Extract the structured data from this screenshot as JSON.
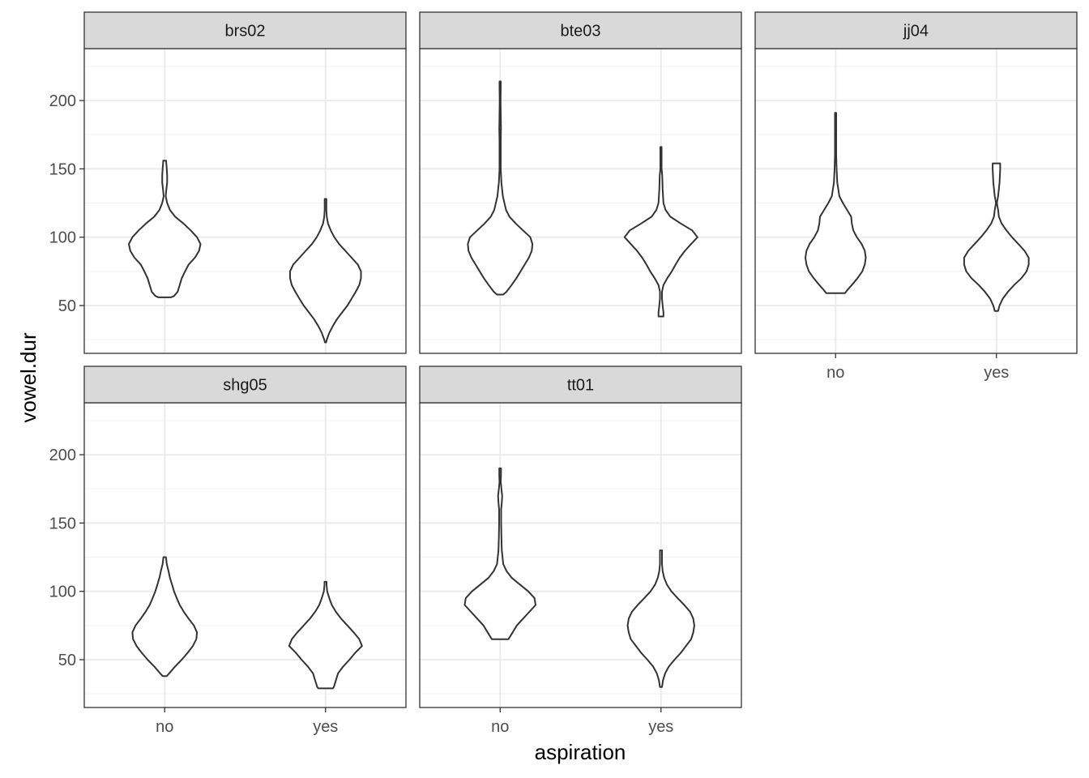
{
  "chart_data": {
    "type": "violin",
    "xlabel": "aspiration",
    "ylabel": "vowel.dur",
    "categories": [
      "no",
      "yes"
    ],
    "ylim": [
      15,
      238
    ],
    "yticks": [
      50,
      100,
      150,
      200
    ],
    "grid": true,
    "facets": [
      {
        "name": "brs02",
        "violins": [
          {
            "category": "no",
            "min": 56,
            "max": 156,
            "profile": [
              [
                56,
                0.3
              ],
              [
                57,
                0.45
              ],
              [
                60,
                0.62
              ],
              [
                65,
                0.72
              ],
              [
                70,
                0.82
              ],
              [
                75,
                0.98
              ],
              [
                80,
                1.15
              ],
              [
                85,
                1.45
              ],
              [
                90,
                1.65
              ],
              [
                95,
                1.72
              ],
              [
                100,
                1.55
              ],
              [
                105,
                1.25
              ],
              [
                110,
                0.9
              ],
              [
                115,
                0.5
              ],
              [
                120,
                0.25
              ],
              [
                125,
                0.12
              ],
              [
                130,
                0.05
              ],
              [
                135,
                0.08
              ],
              [
                140,
                0.12
              ],
              [
                145,
                0.12
              ],
              [
                150,
                0.1
              ],
              [
                155,
                0.07
              ],
              [
                156,
                0.07
              ]
            ]
          },
          {
            "category": "yes",
            "min": 23,
            "max": 128,
            "profile": [
              [
                23,
                0.03
              ],
              [
                25,
                0.06
              ],
              [
                30,
                0.18
              ],
              [
                35,
                0.35
              ],
              [
                40,
                0.55
              ],
              [
                45,
                0.8
              ],
              [
                50,
                1.05
              ],
              [
                55,
                1.25
              ],
              [
                60,
                1.45
              ],
              [
                65,
                1.62
              ],
              [
                70,
                1.7
              ],
              [
                75,
                1.7
              ],
              [
                80,
                1.55
              ],
              [
                85,
                1.25
              ],
              [
                90,
                0.95
              ],
              [
                95,
                0.65
              ],
              [
                100,
                0.42
              ],
              [
                105,
                0.25
              ],
              [
                110,
                0.12
              ],
              [
                115,
                0.06
              ],
              [
                120,
                0.04
              ],
              [
                125,
                0.04
              ],
              [
                128,
                0.04
              ]
            ]
          }
        ]
      },
      {
        "name": "bte03",
        "violins": [
          {
            "category": "no",
            "min": 58,
            "max": 214,
            "profile": [
              [
                58,
                0.15
              ],
              [
                60,
                0.3
              ],
              [
                65,
                0.55
              ],
              [
                70,
                0.78
              ],
              [
                75,
                0.98
              ],
              [
                80,
                1.18
              ],
              [
                85,
                1.38
              ],
              [
                90,
                1.52
              ],
              [
                95,
                1.55
              ],
              [
                100,
                1.45
              ],
              [
                105,
                1.1
              ],
              [
                110,
                0.75
              ],
              [
                115,
                0.45
              ],
              [
                120,
                0.28
              ],
              [
                130,
                0.13
              ],
              [
                140,
                0.06
              ],
              [
                150,
                0.03
              ],
              [
                160,
                0.03
              ],
              [
                170,
                0.03
              ],
              [
                180,
                0.04
              ],
              [
                190,
                0.03
              ],
              [
                200,
                0.02
              ],
              [
                210,
                0.03
              ],
              [
                214,
                0.03
              ]
            ]
          },
          {
            "category": "yes",
            "min": 42,
            "max": 166,
            "profile": [
              [
                42,
                0.12
              ],
              [
                45,
                0.12
              ],
              [
                50,
                0.08
              ],
              [
                55,
                0.05
              ],
              [
                60,
                0.05
              ],
              [
                65,
                0.12
              ],
              [
                70,
                0.3
              ],
              [
                75,
                0.52
              ],
              [
                80,
                0.7
              ],
              [
                85,
                0.9
              ],
              [
                90,
                1.15
              ],
              [
                95,
                1.45
              ],
              [
                100,
                1.75
              ],
              [
                105,
                1.5
              ],
              [
                110,
                0.95
              ],
              [
                115,
                0.45
              ],
              [
                120,
                0.22
              ],
              [
                125,
                0.12
              ],
              [
                135,
                0.08
              ],
              [
                145,
                0.06
              ],
              [
                150,
                0.03
              ],
              [
                160,
                0.03
              ],
              [
                166,
                0.03
              ]
            ]
          }
        ]
      },
      {
        "name": "jj04",
        "violins": [
          {
            "category": "no",
            "min": 59,
            "max": 191,
            "profile": [
              [
                59,
                0.45
              ],
              [
                62,
                0.6
              ],
              [
                65,
                0.78
              ],
              [
                70,
                1.05
              ],
              [
                75,
                1.28
              ],
              [
                80,
                1.4
              ],
              [
                85,
                1.45
              ],
              [
                90,
                1.4
              ],
              [
                95,
                1.25
              ],
              [
                100,
                1.02
              ],
              [
                105,
                0.85
              ],
              [
                110,
                0.78
              ],
              [
                115,
                0.75
              ],
              [
                120,
                0.55
              ],
              [
                125,
                0.35
              ],
              [
                130,
                0.18
              ],
              [
                140,
                0.08
              ],
              [
                150,
                0.05
              ],
              [
                160,
                0.03
              ],
              [
                170,
                0.03
              ],
              [
                180,
                0.03
              ],
              [
                191,
                0.03
              ]
            ]
          },
          {
            "category": "yes",
            "min": 46,
            "max": 154,
            "profile": [
              [
                46,
                0.08
              ],
              [
                50,
                0.15
              ],
              [
                55,
                0.3
              ],
              [
                60,
                0.55
              ],
              [
                65,
                0.85
              ],
              [
                70,
                1.2
              ],
              [
                75,
                1.45
              ],
              [
                80,
                1.55
              ],
              [
                85,
                1.55
              ],
              [
                90,
                1.35
              ],
              [
                95,
                1.05
              ],
              [
                100,
                0.75
              ],
              [
                105,
                0.48
              ],
              [
                110,
                0.25
              ],
              [
                115,
                0.12
              ],
              [
                120,
                0.08
              ],
              [
                125,
                0.02
              ],
              [
                130,
                0.08
              ],
              [
                140,
                0.15
              ],
              [
                150,
                0.18
              ],
              [
                154,
                0.18
              ]
            ]
          }
        ]
      },
      {
        "name": "shg05",
        "violins": [
          {
            "category": "no",
            "min": 38,
            "max": 125,
            "profile": [
              [
                38,
                0.1
              ],
              [
                40,
                0.22
              ],
              [
                45,
                0.5
              ],
              [
                50,
                0.82
              ],
              [
                55,
                1.1
              ],
              [
                60,
                1.35
              ],
              [
                65,
                1.52
              ],
              [
                70,
                1.55
              ],
              [
                75,
                1.4
              ],
              [
                80,
                1.15
              ],
              [
                85,
                0.92
              ],
              [
                90,
                0.72
              ],
              [
                95,
                0.58
              ],
              [
                100,
                0.45
              ],
              [
                105,
                0.35
              ],
              [
                110,
                0.25
              ],
              [
                115,
                0.18
              ],
              [
                120,
                0.1
              ],
              [
                125,
                0.06
              ]
            ]
          },
          {
            "category": "yes",
            "min": 29,
            "max": 107,
            "profile": [
              [
                29,
                0.35
              ],
              [
                30,
                0.4
              ],
              [
                35,
                0.5
              ],
              [
                40,
                0.6
              ],
              [
                45,
                0.85
              ],
              [
                50,
                1.15
              ],
              [
                55,
                1.42
              ],
              [
                60,
                1.75
              ],
              [
                65,
                1.62
              ],
              [
                70,
                1.35
              ],
              [
                75,
                1.05
              ],
              [
                80,
                0.75
              ],
              [
                85,
                0.5
              ],
              [
                90,
                0.3
              ],
              [
                95,
                0.18
              ],
              [
                100,
                0.08
              ],
              [
                105,
                0.05
              ],
              [
                107,
                0.05
              ]
            ]
          }
        ]
      },
      {
        "name": "tt01",
        "violins": [
          {
            "category": "no",
            "min": 65,
            "max": 190,
            "profile": [
              [
                65,
                0.4
              ],
              [
                70,
                0.6
              ],
              [
                75,
                0.8
              ],
              [
                80,
                1.1
              ],
              [
                85,
                1.4
              ],
              [
                90,
                1.7
              ],
              [
                95,
                1.65
              ],
              [
                100,
                1.35
              ],
              [
                105,
                0.95
              ],
              [
                110,
                0.55
              ],
              [
                115,
                0.3
              ],
              [
                120,
                0.15
              ],
              [
                130,
                0.08
              ],
              [
                140,
                0.06
              ],
              [
                150,
                0.05
              ],
              [
                160,
                0.05
              ],
              [
                165,
                0.08
              ],
              [
                170,
                0.1
              ],
              [
                175,
                0.06
              ],
              [
                180,
                0.03
              ],
              [
                185,
                0.04
              ],
              [
                190,
                0.04
              ]
            ]
          },
          {
            "category": "yes",
            "min": 30,
            "max": 130,
            "profile": [
              [
                30,
                0.05
              ],
              [
                35,
                0.1
              ],
              [
                40,
                0.2
              ],
              [
                45,
                0.38
              ],
              [
                50,
                0.65
              ],
              [
                55,
                0.95
              ],
              [
                60,
                1.2
              ],
              [
                65,
                1.45
              ],
              [
                70,
                1.55
              ],
              [
                75,
                1.6
              ],
              [
                80,
                1.55
              ],
              [
                85,
                1.4
              ],
              [
                90,
                1.12
              ],
              [
                95,
                0.8
              ],
              [
                100,
                0.5
              ],
              [
                105,
                0.28
              ],
              [
                110,
                0.15
              ],
              [
                115,
                0.08
              ],
              [
                120,
                0.05
              ],
              [
                125,
                0.05
              ],
              [
                130,
                0.05
              ]
            ]
          }
        ]
      }
    ]
  }
}
